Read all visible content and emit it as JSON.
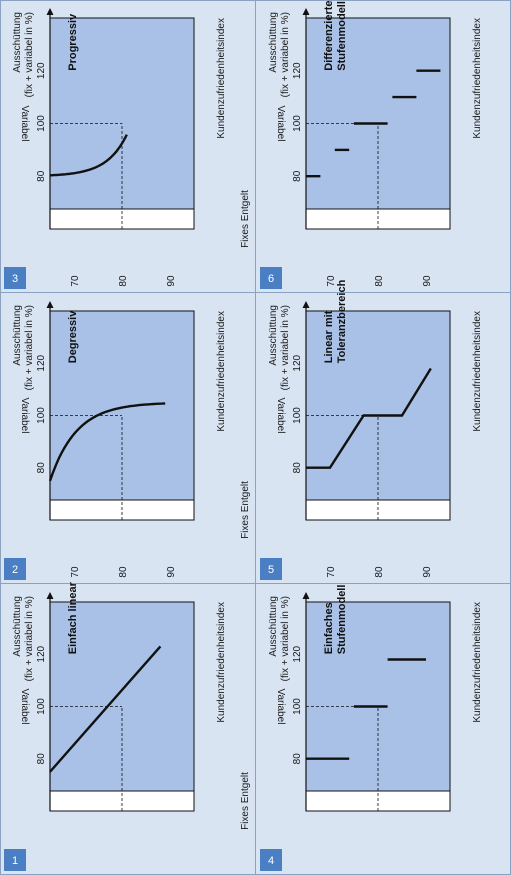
{
  "panels": [
    {
      "number": "1",
      "title_lines": [
        "Einfach linear"
      ],
      "curve": "linear"
    },
    {
      "number": "2",
      "title_lines": [
        "Degressiv"
      ],
      "curve": "degressive"
    },
    {
      "number": "3",
      "title_lines": [
        "Progressiv"
      ],
      "curve": "progressive"
    },
    {
      "number": "4",
      "title_lines": [
        "Einfaches",
        "Stufenmodell"
      ],
      "curve": "steps-simple"
    },
    {
      "number": "5",
      "title_lines": [
        "Linear mit",
        "Toleranzbereich"
      ],
      "curve": "tolerance"
    },
    {
      "number": "6",
      "title_lines": [
        "Differenziertes",
        "Stufenmodell"
      ],
      "curve": "steps-differentiated"
    }
  ],
  "labels": {
    "y_axis_line1": "Ausschüttung",
    "y_axis_line2": "(fix + variabel in %)",
    "variable": "Variabel",
    "fixed": "Fixes Entgelt",
    "x_axis": "Kundenzufriedenheitsindex"
  },
  "x_ticks": [
    "70",
    "80",
    "90"
  ],
  "y_ticks": [
    "80",
    "100",
    "120"
  ],
  "colors": {
    "background": "#d8e4f2",
    "plot_fill": "#a9c1e6",
    "number_box": "#4a7fc4",
    "line": "#111111"
  }
}
